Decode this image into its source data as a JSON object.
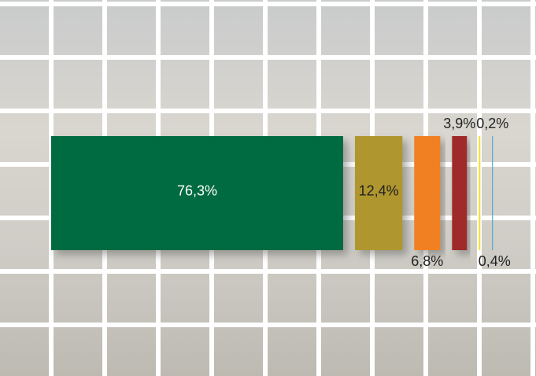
{
  "chart_data": {
    "type": "bar",
    "values": [
      76.3,
      12.4,
      6.8,
      3.9,
      0.4,
      0.2
    ],
    "value_labels": [
      "76,3%",
      "12,4%",
      "6,8%",
      "3,9%",
      "0,4%",
      "0,2%"
    ],
    "colors": [
      "#006b3f",
      "#b0962e",
      "#f08020",
      "#9e2a2b",
      "#f2e030",
      "#3aa0d8"
    ]
  }
}
